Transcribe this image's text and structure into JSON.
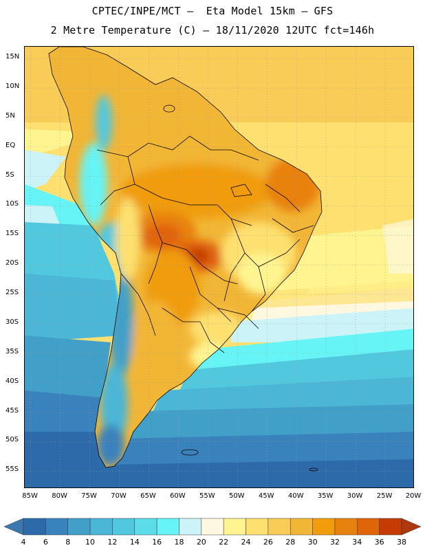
{
  "header": {
    "title_line1": "CPTEC/INPE/MCT –  Eta Model 15km – GFS",
    "title_line2": "2 Metre Temperature (C) – 18/11/2020 12UTC fct=146h"
  },
  "map": {
    "region": "South America",
    "variable": "2 Metre Temperature",
    "units": "C",
    "lat_labels": [
      "15N",
      "10N",
      "5N",
      "EQ",
      "5S",
      "10S",
      "15S",
      "20S",
      "25S",
      "30S",
      "35S",
      "40S",
      "45S",
      "50S",
      "55S"
    ],
    "lon_labels": [
      "85W",
      "80W",
      "75W",
      "70W",
      "65W",
      "60W",
      "55W",
      "50W",
      "45W",
      "40W",
      "35W",
      "30W",
      "25W",
      "20W"
    ],
    "lat_values": [
      15,
      10,
      5,
      0,
      -5,
      -10,
      -15,
      -20,
      -25,
      -30,
      -35,
      -40,
      -45,
      -50,
      -55
    ],
    "lon_values": [
      -85,
      -80,
      -75,
      -70,
      -65,
      -60,
      -55,
      -50,
      -45,
      -40,
      -35,
      -30,
      -25,
      -20
    ],
    "extent": {
      "lon_min": -86,
      "lon_max": -20,
      "lat_min": -58,
      "lat_max": 17
    }
  },
  "colorbar": {
    "labels": [
      "4",
      "6",
      "8",
      "10",
      "12",
      "14",
      "16",
      "18",
      "20",
      "22",
      "24",
      "26",
      "28",
      "30",
      "32",
      "34",
      "36",
      "38"
    ],
    "colors": [
      "#3c78b0",
      "#2c6aaa",
      "#3a82bc",
      "#42a0c8",
      "#4cb6d6",
      "#52c8de",
      "#5cdce8",
      "#66f4f6",
      "#ccf4f8",
      "#fff8e0",
      "#fff490",
      "#fde070",
      "#f8cc56",
      "#f2b636",
      "#f09c0c",
      "#e8820e",
      "#e06408",
      "#c43c04",
      "#b0380e"
    ]
  }
}
